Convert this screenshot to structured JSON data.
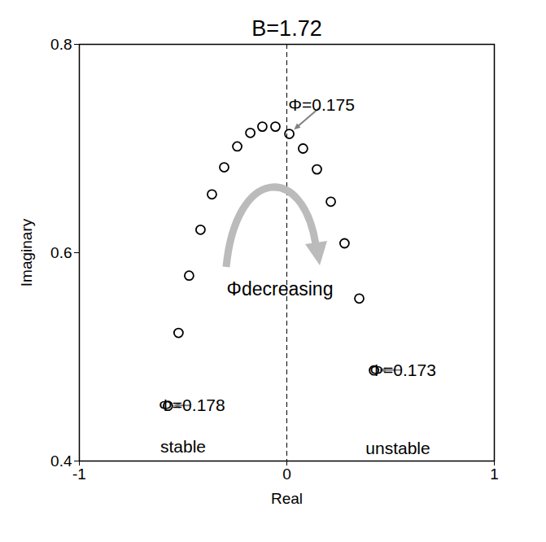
{
  "chart_data": {
    "type": "scatter",
    "title": "B=1.72",
    "x_label": "Real",
    "y_label": "Imaginary",
    "x": [
      -0.573,
      -0.522,
      -0.471,
      -0.416,
      -0.361,
      -0.302,
      -0.239,
      -0.176,
      -0.118,
      -0.055,
      0.012,
      0.078,
      0.145,
      0.212,
      0.278,
      0.349,
      0.42
    ],
    "values": [
      0.453,
      0.523,
      0.578,
      0.622,
      0.656,
      0.682,
      0.702,
      0.715,
      0.721,
      0.721,
      0.714,
      0.7,
      0.68,
      0.649,
      0.609,
      0.556,
      0.487
    ],
    "color": "black",
    "marker": "circle",
    "xlim": [
      -1,
      1
    ],
    "xticks": [
      -1,
      0,
      1
    ],
    "ylim": [
      0.4,
      0.8
    ],
    "yticks": [
      0.4,
      0.6,
      0.8
    ],
    "reference_x": 0,
    "annotations": [
      {
        "text": "Φ=0.175",
        "x": 0.012,
        "y": 0.714
      },
      {
        "text": "Φ=0.178",
        "x": -0.573,
        "y": 0.453
      },
      {
        "text": "Φ=0.173",
        "x": 0.42,
        "y": 0.487
      }
    ],
    "region_labels": [
      "stable",
      "unstable"
    ],
    "arrow_label": "Φdecreasing"
  }
}
